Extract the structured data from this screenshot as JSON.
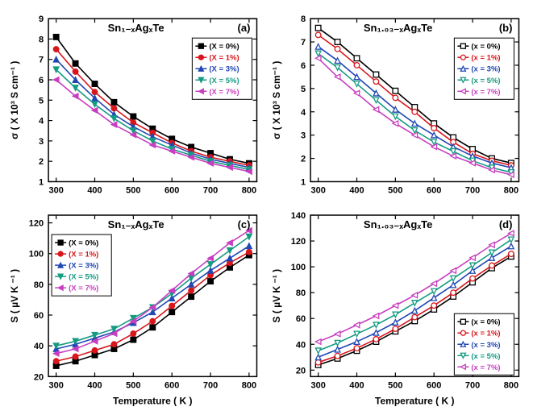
{
  "colors": {
    "series": [
      "#000000",
      "#d8161b",
      "#2047b4",
      "#159b82",
      "#c73fc0"
    ],
    "axis": "#000000",
    "bg": "#ffffff",
    "border": "#000000"
  },
  "markers": [
    "square",
    "circle",
    "triangle-up",
    "triangle-down",
    "triangle-left"
  ],
  "xticks": [
    300,
    400,
    500,
    600,
    700,
    800
  ],
  "xlabel": "Temperature ( K )",
  "panels": {
    "a": {
      "tag": "(a)",
      "title": "Sn₁₋ₓAgₓTe",
      "ylabel": "σ ( X 10³ S cm⁻¹ )",
      "yticks": [
        1,
        2,
        3,
        4,
        5,
        6,
        7,
        8,
        9
      ],
      "ylim": [
        1,
        9
      ],
      "legend": [
        "(X = 0%)",
        "(X = 1%)",
        "(X = 3%)",
        "(X = 5%)",
        "(X = 7%)"
      ],
      "legend_pos": "right",
      "open_markers": false,
      "x": [
        300,
        350,
        400,
        450,
        500,
        550,
        600,
        650,
        700,
        750,
        800
      ],
      "series": [
        [
          8.1,
          6.8,
          5.8,
          4.9,
          4.2,
          3.6,
          3.1,
          2.7,
          2.4,
          2.1,
          1.9
        ],
        [
          7.5,
          6.4,
          5.4,
          4.6,
          3.9,
          3.4,
          2.9,
          2.5,
          2.2,
          2.0,
          1.8
        ],
        [
          7.0,
          6.0,
          5.1,
          4.3,
          3.7,
          3.2,
          2.8,
          2.4,
          2.1,
          1.9,
          1.7
        ],
        [
          6.5,
          5.6,
          4.8,
          4.1,
          3.5,
          3.0,
          2.6,
          2.3,
          2.0,
          1.8,
          1.6
        ],
        [
          6.0,
          5.2,
          4.5,
          3.8,
          3.3,
          2.8,
          2.5,
          2.2,
          1.9,
          1.7,
          1.5
        ]
      ]
    },
    "b": {
      "tag": "(b)",
      "title": "Sn₁.₀₃₋ₓAgₓTe",
      "ylabel": "σ ( X 10³ S cm⁻¹ )",
      "yticks": [
        1,
        2,
        3,
        4,
        5,
        6,
        7,
        8
      ],
      "ylim": [
        1,
        8
      ],
      "legend": [
        "(x = 0%)",
        "(x = 1%)",
        "(x = 3%)",
        "(x = 5%)",
        "(x = 7%)"
      ],
      "legend_pos": "right",
      "open_markers": true,
      "x": [
        300,
        350,
        400,
        450,
        500,
        550,
        600,
        650,
        700,
        750,
        800
      ],
      "series": [
        [
          7.6,
          7.0,
          6.3,
          5.6,
          4.9,
          4.2,
          3.5,
          2.9,
          2.4,
          2.0,
          1.8
        ],
        [
          7.3,
          6.7,
          6.0,
          5.3,
          4.6,
          4.0,
          3.3,
          2.7,
          2.2,
          1.9,
          1.7
        ],
        [
          6.8,
          6.2,
          5.5,
          4.8,
          4.1,
          3.5,
          3.0,
          2.5,
          2.1,
          1.8,
          1.6
        ],
        [
          6.5,
          5.9,
          5.2,
          4.5,
          3.8,
          3.2,
          2.7,
          2.3,
          1.9,
          1.6,
          1.4
        ],
        [
          6.3,
          5.5,
          4.8,
          4.1,
          3.5,
          3.0,
          2.5,
          2.1,
          1.8,
          1.5,
          1.3
        ]
      ]
    },
    "c": {
      "tag": "(c)",
      "title": "Sn₁₋ₓAgₓTe",
      "ylabel": "S ( µV K ⁻¹ )",
      "yticks": [
        20,
        40,
        60,
        80,
        100,
        120
      ],
      "ylim": [
        20,
        125
      ],
      "legend": [
        "(X = 0%)",
        "(X = 1%)",
        "(X = 3%)",
        "(X = 5%)",
        "(X = 7%)"
      ],
      "legend_pos": "left",
      "open_markers": false,
      "x": [
        300,
        350,
        400,
        450,
        500,
        550,
        600,
        650,
        700,
        750,
        800
      ],
      "series": [
        [
          27,
          30,
          34,
          38,
          44,
          52,
          62,
          72,
          82,
          91,
          99
        ],
        [
          30,
          33,
          37,
          41,
          48,
          56,
          66,
          76,
          86,
          94,
          101
        ],
        [
          38,
          41,
          45,
          49,
          55,
          62,
          71,
          80,
          89,
          97,
          105
        ],
        [
          40,
          43,
          47,
          51,
          58,
          65,
          74,
          84,
          93,
          102,
          111
        ],
        [
          35,
          38,
          43,
          48,
          56,
          65,
          76,
          87,
          97,
          107,
          115
        ]
      ]
    },
    "d": {
      "tag": "(d)",
      "title": "Sn₁.₀₃₋ₓAgₓTe",
      "ylabel": "S ( µV K ⁻¹ )",
      "yticks": [
        20,
        40,
        60,
        80,
        100,
        120,
        140
      ],
      "ylim": [
        15,
        140
      ],
      "legend": [
        "(x = 0%)",
        "(x = 1%)",
        "(x = 3%)",
        "(x = 5%)",
        "(x = 7%)"
      ],
      "legend_pos": "right-low",
      "open_markers": true,
      "x": [
        300,
        350,
        400,
        450,
        500,
        550,
        600,
        650,
        700,
        750,
        800
      ],
      "series": [
        [
          24,
          29,
          35,
          42,
          50,
          58,
          67,
          77,
          88,
          99,
          108
        ],
        [
          26,
          31,
          37,
          44,
          52,
          61,
          70,
          80,
          91,
          101,
          110
        ],
        [
          30,
          36,
          42,
          49,
          57,
          66,
          76,
          86,
          97,
          107,
          116
        ],
        [
          35,
          41,
          48,
          55,
          63,
          72,
          81,
          91,
          101,
          111,
          121
        ],
        [
          42,
          48,
          55,
          62,
          70,
          78,
          87,
          97,
          107,
          117,
          126
        ]
      ]
    }
  }
}
